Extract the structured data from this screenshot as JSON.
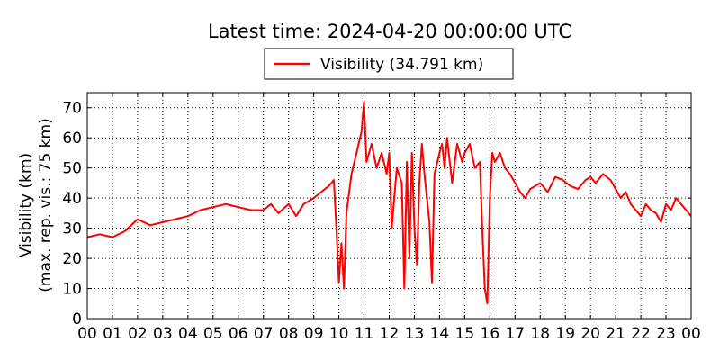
{
  "chart_data": {
    "type": "line",
    "title": "Latest time: 2024-04-20 00:00:00 UTC",
    "ylabel_line1": "Visibility (km)",
    "ylabel_line2": "(max. rep. vis.: 75 km)",
    "xlabel": "",
    "ylim": [
      0,
      75
    ],
    "xlim": [
      0,
      24
    ],
    "grid": true,
    "legend_position": "top-center",
    "x_ticks": [
      "00",
      "01",
      "02",
      "03",
      "04",
      "05",
      "06",
      "07",
      "08",
      "09",
      "10",
      "11",
      "12",
      "13",
      "14",
      "15",
      "16",
      "17",
      "18",
      "19",
      "20",
      "21",
      "22",
      "23",
      "00"
    ],
    "y_ticks": [
      0,
      10,
      20,
      30,
      40,
      50,
      60,
      70
    ],
    "series": [
      {
        "name": "Visibility (34.791 km)",
        "color": "#ff0000",
        "x_hours": [
          0,
          0.5,
          1,
          1.5,
          2,
          2.5,
          3,
          3.5,
          4,
          4.5,
          5,
          5.5,
          6,
          6.5,
          7,
          7.3,
          7.6,
          8,
          8.3,
          8.6,
          9,
          9.3,
          9.6,
          9.8,
          9.9,
          10,
          10.1,
          10.2,
          10.3,
          10.5,
          10.7,
          10.9,
          11,
          11.1,
          11.3,
          11.5,
          11.7,
          11.9,
          12,
          12.1,
          12.3,
          12.5,
          12.6,
          12.7,
          12.8,
          12.9,
          13,
          13.1,
          13.2,
          13.3,
          13.4,
          13.5,
          13.6,
          13.7,
          13.8,
          14,
          14.1,
          14.2,
          14.3,
          14.5,
          14.7,
          14.9,
          15,
          15.2,
          15.4,
          15.6,
          15.7,
          15.8,
          15.9,
          16,
          16.1,
          16.2,
          16.4,
          16.6,
          16.8,
          17,
          17.2,
          17.4,
          17.6,
          17.8,
          18,
          18.3,
          18.6,
          18.9,
          19.2,
          19.5,
          19.8,
          20,
          20.2,
          20.5,
          20.8,
          21,
          21.2,
          21.4,
          21.6,
          21.8,
          22,
          22.2,
          22.4,
          22.6,
          22.8,
          23,
          23.2,
          23.4,
          23.6,
          23.8,
          24
        ],
        "values": [
          27,
          28,
          27,
          29,
          33,
          31,
          32,
          33,
          34,
          36,
          37,
          38,
          37,
          36,
          36,
          38,
          35,
          38,
          34,
          38,
          40,
          42,
          44,
          46,
          30,
          12,
          25,
          10,
          35,
          48,
          55,
          62,
          72,
          52,
          58,
          50,
          55,
          48,
          55,
          30,
          50,
          45,
          10,
          52,
          20,
          55,
          30,
          18,
          45,
          58,
          48,
          40,
          32,
          12,
          48,
          55,
          58,
          50,
          60,
          45,
          58,
          52,
          55,
          58,
          50,
          52,
          30,
          10,
          5,
          40,
          55,
          52,
          55,
          50,
          48,
          45,
          42,
          40,
          43,
          44,
          45,
          42,
          47,
          46,
          44,
          43,
          46,
          47,
          45,
          48,
          46,
          43,
          40,
          42,
          38,
          36,
          34,
          38,
          36,
          35,
          32,
          38,
          36,
          40,
          38,
          36,
          34
        ]
      }
    ]
  }
}
